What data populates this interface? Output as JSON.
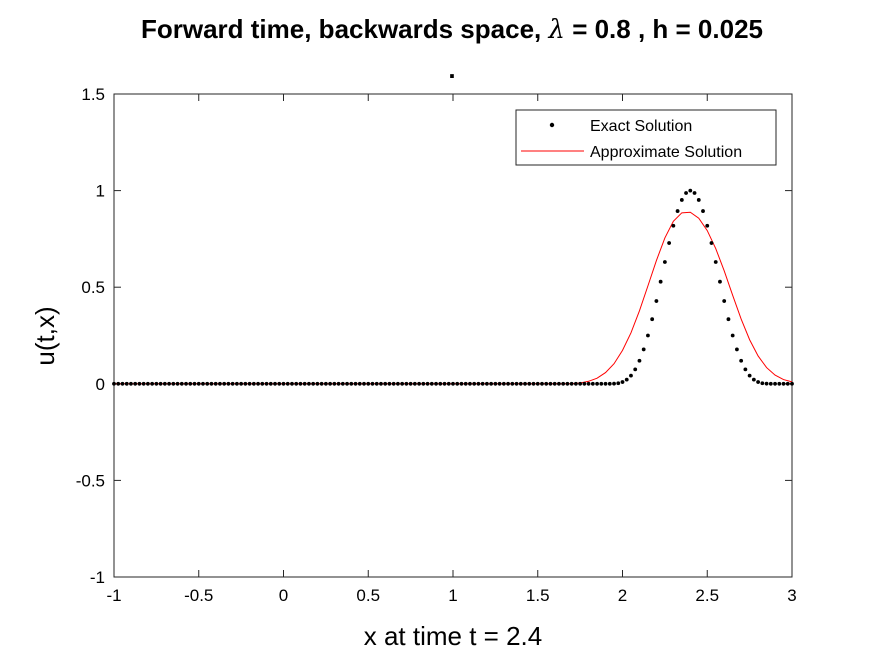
{
  "chart_data": {
    "type": "line",
    "title_prefix": "Forward time, backwards space, ",
    "title_symbol": "λ",
    "title_suffix": " = 0.8 , h = 0.025",
    "title_line2": ".",
    "xlabel": "x at time t = 2.4",
    "ylabel": "u(t,x)",
    "xlim": [
      -1,
      3
    ],
    "ylim": [
      -1,
      1.5
    ],
    "xticks": [
      -1,
      -0.5,
      0,
      0.5,
      1,
      1.5,
      2,
      2.5,
      3
    ],
    "xtick_labels": [
      "-1",
      "-0.5",
      "0",
      "0.5",
      "1",
      "1.5",
      "2",
      "2.5",
      "3"
    ],
    "yticks": [
      -1,
      -0.5,
      0,
      0.5,
      1,
      1.5
    ],
    "ytick_labels": [
      "-1",
      "-0.5",
      "0",
      "0.5",
      "1",
      "1.5"
    ],
    "grid": false,
    "legend_position": "top-right",
    "series": [
      {
        "name": "Exact Solution",
        "style": "dots",
        "color": "#000000",
        "x_start": -1,
        "x_step": 0.025,
        "count": 161,
        "pulse_center": 2.4,
        "pulse_halfwidth": 0.5,
        "peak": 1.0
      },
      {
        "name": "Approximate Solution",
        "style": "line",
        "color": "#ff0000",
        "x": [
          1.7,
          1.75,
          1.8,
          1.85,
          1.9,
          1.95,
          2.0,
          2.05,
          2.1,
          2.15,
          2.2,
          2.25,
          2.3,
          2.35,
          2.4,
          2.45,
          2.5,
          2.55,
          2.6,
          2.65,
          2.7,
          2.75,
          2.8,
          2.85,
          2.9,
          2.95,
          3.0
        ],
        "y": [
          0.0,
          0.004,
          0.013,
          0.029,
          0.058,
          0.104,
          0.173,
          0.264,
          0.378,
          0.507,
          0.638,
          0.755,
          0.841,
          0.885,
          0.888,
          0.857,
          0.793,
          0.7,
          0.585,
          0.458,
          0.335,
          0.228,
          0.144,
          0.084,
          0.045,
          0.022,
          0.01
        ]
      }
    ]
  }
}
